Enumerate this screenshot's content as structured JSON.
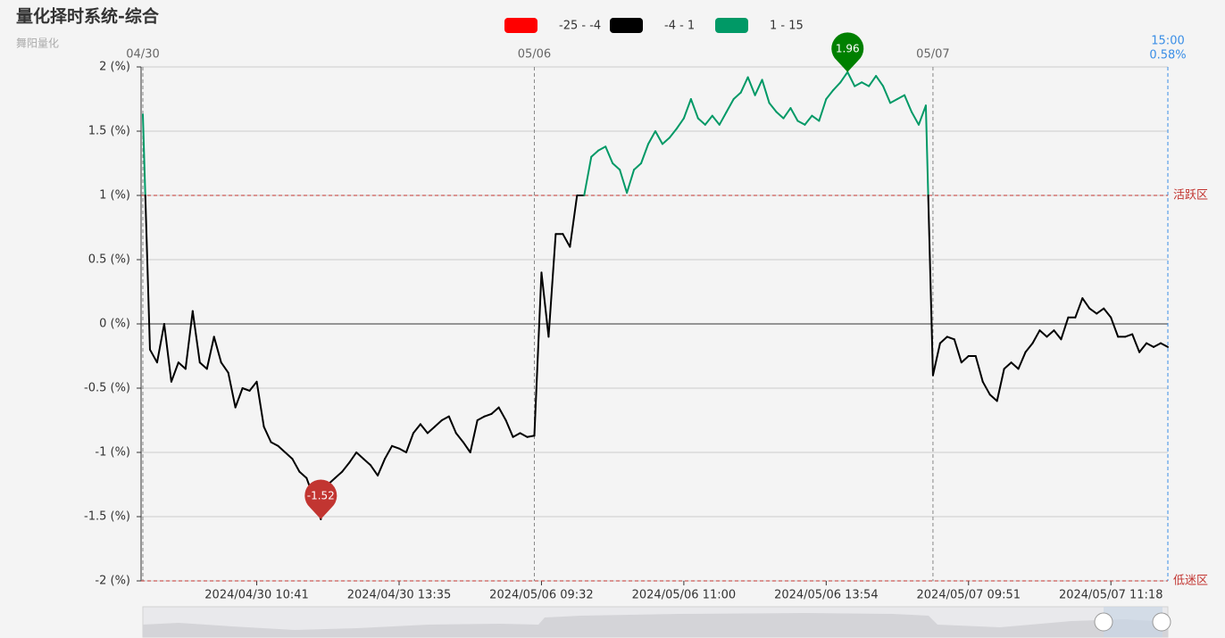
{
  "chart_data": {
    "type": "line",
    "title": "量化择时系统-综合",
    "subtitle": "舞阳量化",
    "categories": [
      null,
      null,
      null,
      null,
      null,
      null,
      null,
      null,
      null,
      null,
      null,
      null,
      null,
      null,
      null,
      null,
      "2024/04/30 10:41",
      null,
      null,
      null,
      null,
      null,
      null,
      null,
      null,
      null,
      null,
      null,
      null,
      null,
      null,
      null,
      null,
      null,
      null,
      null,
      "2024/04/30 13:35",
      null,
      null,
      null,
      null,
      null,
      null,
      null,
      null,
      null,
      null,
      null,
      null,
      null,
      null,
      null,
      null,
      null,
      null,
      null,
      "2024/05/06 09:32",
      null,
      null,
      null,
      null,
      null,
      null,
      null,
      null,
      null,
      null,
      null,
      null,
      null,
      null,
      null,
      null,
      null,
      null,
      null,
      "2024/05/06 11:00",
      null,
      null,
      null,
      null,
      null,
      null,
      null,
      null,
      null,
      null,
      null,
      null,
      null,
      null,
      null,
      null,
      null,
      null,
      null,
      "2024/05/06 13:54",
      null,
      null,
      null,
      null,
      null,
      null,
      null,
      null,
      null,
      null,
      null,
      null,
      null,
      null,
      null,
      null,
      null,
      null,
      null,
      "2024/05/07 09:51",
      null,
      null,
      null,
      null,
      null,
      null,
      null,
      null,
      null,
      null,
      null,
      null,
      null,
      null,
      null,
      null,
      null,
      null,
      null,
      "2024/05/07 11:18",
      null,
      null,
      null,
      null,
      null,
      null,
      null,
      null
    ],
    "values": [
      1.63,
      -0.2,
      -0.3,
      0.0,
      -0.45,
      -0.3,
      -0.35,
      0.1,
      -0.3,
      -0.35,
      -0.1,
      -0.3,
      -0.38,
      -0.65,
      -0.5,
      -0.52,
      -0.45,
      -0.8,
      -0.92,
      -0.95,
      -1.0,
      -1.05,
      -1.15,
      -1.2,
      -1.35,
      -1.52,
      -1.25,
      -1.2,
      -1.15,
      -1.08,
      -1.0,
      -1.05,
      -1.1,
      -1.18,
      -1.05,
      -0.95,
      -0.97,
      -1.0,
      -0.85,
      -0.78,
      -0.85,
      -0.8,
      -0.75,
      -0.72,
      -0.85,
      -0.92,
      -1.0,
      -0.75,
      -0.72,
      -0.7,
      -0.65,
      -0.75,
      -0.88,
      -0.85,
      -0.88,
      -0.87,
      0.4,
      -0.1,
      0.7,
      0.7,
      0.6,
      1.0,
      1.0,
      1.3,
      1.35,
      1.38,
      1.25,
      1.2,
      1.02,
      1.2,
      1.25,
      1.4,
      1.5,
      1.4,
      1.45,
      1.52,
      1.6,
      1.75,
      1.6,
      1.55,
      1.62,
      1.55,
      1.65,
      1.75,
      1.8,
      1.92,
      1.78,
      1.9,
      1.72,
      1.65,
      1.6,
      1.68,
      1.58,
      1.55,
      1.62,
      1.58,
      1.75,
      1.82,
      1.88,
      1.96,
      1.85,
      1.88,
      1.85,
      1.93,
      1.85,
      1.72,
      1.75,
      1.78,
      1.65,
      1.55,
      1.7,
      -0.4,
      -0.15,
      -0.1,
      -0.12,
      -0.3,
      -0.25,
      -0.25,
      -0.45,
      -0.55,
      -0.6,
      -0.35,
      -0.3,
      -0.35,
      -0.22,
      -0.15,
      -0.05,
      -0.1,
      -0.05,
      -0.12,
      0.05,
      0.05,
      0.2,
      0.12,
      0.08,
      0.12,
      0.05,
      -0.1,
      -0.1,
      -0.08,
      -0.22,
      -0.15,
      -0.18,
      -0.15,
      -0.18
    ],
    "visual_map": [
      {
        "label": "-25 - -4",
        "min": -25,
        "max": -4,
        "color": "#ff0000"
      },
      {
        "label": "-4 - 1",
        "min": -4,
        "max": 1,
        "color": "#000000"
      },
      {
        "label": "1 - 15",
        "min": 1,
        "max": 15,
        "color": "#009966"
      }
    ],
    "ylim": [
      -2,
      2
    ],
    "yticks": [
      {
        "value": -2,
        "label": "-2 (%)"
      },
      {
        "value": -1.5,
        "label": "-1.5 (%)"
      },
      {
        "value": -1,
        "label": "-1 (%)"
      },
      {
        "value": -0.5,
        "label": "-0.5 (%)"
      },
      {
        "value": 0,
        "label": "0 (%)"
      },
      {
        "value": 0.5,
        "label": "0.5 (%)"
      },
      {
        "value": 1,
        "label": "1 (%)"
      },
      {
        "value": 1.5,
        "label": "1.5 (%)"
      },
      {
        "value": 2,
        "label": "2 (%)"
      }
    ],
    "grid": true,
    "mark_lines": [
      {
        "value": 1,
        "label": "活跃区",
        "color": "#c23531"
      },
      {
        "value": -2,
        "label": "低迷区",
        "color": "#c23531"
      }
    ],
    "mark_points": [
      {
        "value": 1.96,
        "color": "#008000"
      },
      {
        "value": -1.52,
        "color": "#c23531"
      }
    ],
    "day_markers": [
      {
        "index": 0,
        "label": "04/30"
      },
      {
        "index": 55,
        "label": "05/06"
      },
      {
        "index": 111,
        "label": "05/07"
      }
    ],
    "end_marker": {
      "time": "15:00",
      "value_label": "0.58%",
      "color": "#3a8ee6"
    }
  }
}
